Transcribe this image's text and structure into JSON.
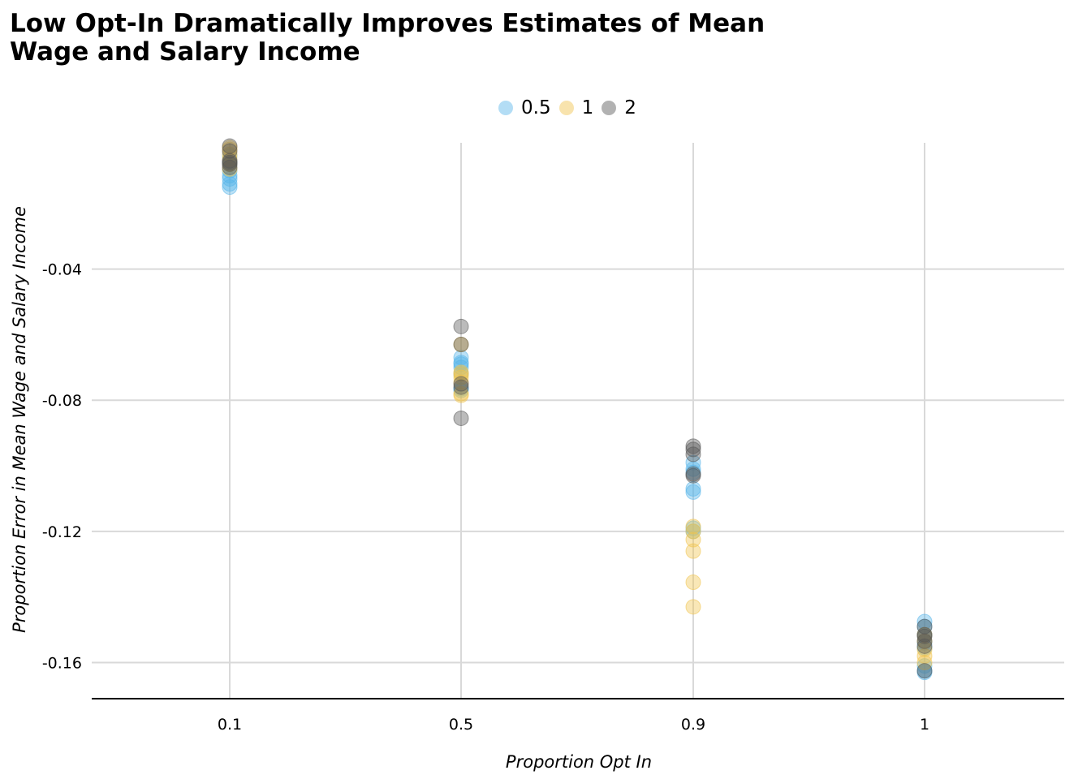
{
  "chart_data": {
    "type": "scatter",
    "title_lines": [
      "Low Opt-In Dramatically Improves Estimates of Mean",
      "Wage and Salary Income"
    ],
    "xlabel": "Proportion Opt In",
    "ylabel": "Proportion Error in Mean Wage and Salary Income",
    "x_categories": [
      "0.1",
      "0.5",
      "0.9",
      "1"
    ],
    "y_ticks": [
      -0.04,
      -0.08,
      -0.12,
      -0.16
    ],
    "y_tick_labels": [
      "-0.04",
      "-0.08",
      "-0.12",
      "-0.16"
    ],
    "ylim": [
      -0.171,
      -0.0015
    ],
    "grid": true,
    "legend_position": "top",
    "series": [
      {
        "name": "0.5",
        "color": "#56B4E9",
        "points": [
          {
            "x": "0.1",
            "y": -0.0055
          },
          {
            "x": "0.1",
            "y": -0.0075
          },
          {
            "x": "0.1",
            "y": -0.008
          },
          {
            "x": "0.1",
            "y": -0.01
          },
          {
            "x": "0.1",
            "y": -0.0115
          },
          {
            "x": "0.1",
            "y": -0.0125
          },
          {
            "x": "0.1",
            "y": -0.014
          },
          {
            "x": "0.1",
            "y": -0.015
          },
          {
            "x": "0.5",
            "y": -0.067
          },
          {
            "x": "0.5",
            "y": -0.0685
          },
          {
            "x": "0.5",
            "y": -0.069
          },
          {
            "x": "0.5",
            "y": -0.07
          },
          {
            "x": "0.5",
            "y": -0.072
          },
          {
            "x": "0.5",
            "y": -0.0765
          },
          {
            "x": "0.5",
            "y": -0.077
          },
          {
            "x": "0.9",
            "y": -0.099
          },
          {
            "x": "0.9",
            "y": -0.101
          },
          {
            "x": "0.9",
            "y": -0.102
          },
          {
            "x": "0.9",
            "y": -0.107
          },
          {
            "x": "0.9",
            "y": -0.108
          },
          {
            "x": "0.9",
            "y": -0.119
          },
          {
            "x": "0.9",
            "y": -0.12
          },
          {
            "x": "1",
            "y": -0.1475
          },
          {
            "x": "1",
            "y": -0.149
          },
          {
            "x": "1",
            "y": -0.1515
          },
          {
            "x": "1",
            "y": -0.154
          },
          {
            "x": "1",
            "y": -0.1555
          },
          {
            "x": "1",
            "y": -0.161
          },
          {
            "x": "1",
            "y": -0.1625
          },
          {
            "x": "1",
            "y": -0.163
          }
        ]
      },
      {
        "name": "1",
        "color": "#F0C24A",
        "points": [
          {
            "x": "0.1",
            "y": -0.003
          },
          {
            "x": "0.1",
            "y": -0.0035
          },
          {
            "x": "0.1",
            "y": -0.005
          },
          {
            "x": "0.1",
            "y": -0.0065
          },
          {
            "x": "0.1",
            "y": -0.008
          },
          {
            "x": "0.1",
            "y": -0.0095
          },
          {
            "x": "0.5",
            "y": -0.063
          },
          {
            "x": "0.5",
            "y": -0.0715
          },
          {
            "x": "0.5",
            "y": -0.072
          },
          {
            "x": "0.5",
            "y": -0.073
          },
          {
            "x": "0.5",
            "y": -0.0745
          },
          {
            "x": "0.5",
            "y": -0.078
          },
          {
            "x": "0.5",
            "y": -0.0785
          },
          {
            "x": "0.9",
            "y": -0.1185
          },
          {
            "x": "0.9",
            "y": -0.12
          },
          {
            "x": "0.9",
            "y": -0.1225
          },
          {
            "x": "0.9",
            "y": -0.126
          },
          {
            "x": "0.9",
            "y": -0.1355
          },
          {
            "x": "0.9",
            "y": -0.143
          },
          {
            "x": "1",
            "y": -0.1515
          },
          {
            "x": "1",
            "y": -0.1535
          },
          {
            "x": "1",
            "y": -0.156
          },
          {
            "x": "1",
            "y": -0.158
          },
          {
            "x": "1",
            "y": -0.16
          }
        ]
      },
      {
        "name": "2",
        "color": "#555555",
        "points": [
          {
            "x": "0.1",
            "y": -0.0025
          },
          {
            "x": "0.1",
            "y": -0.004
          },
          {
            "x": "0.1",
            "y": -0.007
          },
          {
            "x": "0.1",
            "y": -0.0075
          },
          {
            "x": "0.1",
            "y": -0.008
          },
          {
            "x": "0.1",
            "y": -0.009
          },
          {
            "x": "0.5",
            "y": -0.0575
          },
          {
            "x": "0.5",
            "y": -0.063
          },
          {
            "x": "0.5",
            "y": -0.075
          },
          {
            "x": "0.5",
            "y": -0.076
          },
          {
            "x": "0.5",
            "y": -0.0855
          },
          {
            "x": "0.9",
            "y": -0.094
          },
          {
            "x": "0.9",
            "y": -0.095
          },
          {
            "x": "0.9",
            "y": -0.0965
          },
          {
            "x": "0.9",
            "y": -0.1025
          },
          {
            "x": "0.9",
            "y": -0.103
          },
          {
            "x": "1",
            "y": -0.149
          },
          {
            "x": "1",
            "y": -0.1515
          },
          {
            "x": "1",
            "y": -0.152
          },
          {
            "x": "1",
            "y": -0.1535
          },
          {
            "x": "1",
            "y": -0.155
          },
          {
            "x": "1",
            "y": -0.1625
          }
        ]
      }
    ]
  }
}
